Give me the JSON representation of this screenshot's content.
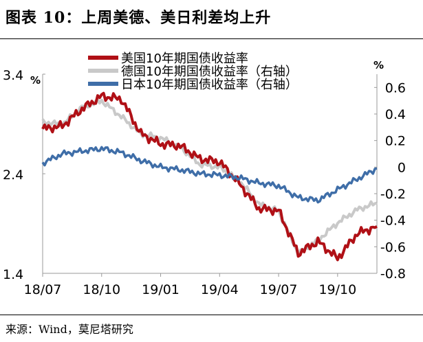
{
  "header": {
    "title": "图表 10：上周美德、美日利差均上升"
  },
  "footer": {
    "source": "来源：Wind，莫尼塔研究"
  },
  "chart_data": {
    "type": "line",
    "title": "",
    "y_left": {
      "unit": "%",
      "range": [
        1.4,
        3.4
      ],
      "ticks": [
        "3.4",
        "2.4",
        "1.4"
      ],
      "tick_values": [
        3.4,
        2.4,
        1.4
      ]
    },
    "y_right": {
      "unit": "%",
      "range": [
        -0.8,
        0.7
      ],
      "ticks": [
        "0.6",
        "0.4",
        "0.2",
        "0",
        "-0.2",
        "-0.4",
        "-0.6",
        "-0.8"
      ],
      "tick_values": [
        0.6,
        0.4,
        0.2,
        0,
        -0.2,
        -0.4,
        -0.6,
        -0.8
      ]
    },
    "x_ticks": [
      "18/07",
      "18/10",
      "19/01",
      "19/04",
      "19/07",
      "19/10"
    ],
    "x_tick_values": [
      "2018-07",
      "2018-10",
      "2019-01",
      "2019-04",
      "2019-07",
      "2019-10"
    ],
    "x_range": [
      "2018-07",
      "2019-12"
    ],
    "legend_position": "top-center",
    "colors": {
      "us": "#b01016",
      "de": "#c9c9c9",
      "jp": "#3f6ea8"
    },
    "series": [
      {
        "name": "美国10年期国债收益率",
        "axis": "left",
        "x": [
          "2018-07",
          "2018-08",
          "2018-09",
          "2018-10",
          "2018-11",
          "2018-12",
          "2019-01",
          "2019-02",
          "2019-03",
          "2019-04",
          "2019-05",
          "2019-06",
          "2019-07",
          "2019-08",
          "2019-09",
          "2019-10",
          "2019-11",
          "2019-12"
        ],
        "values": [
          2.85,
          2.88,
          3.05,
          3.18,
          3.15,
          2.8,
          2.7,
          2.68,
          2.55,
          2.52,
          2.3,
          2.05,
          2.03,
          1.6,
          1.72,
          1.55,
          1.8,
          1.87
        ]
      },
      {
        "name": "德国10年期国债收益率（右轴）",
        "axis": "right",
        "x": [
          "2018-07",
          "2018-08",
          "2018-09",
          "2018-10",
          "2018-11",
          "2018-12",
          "2019-01",
          "2019-02",
          "2019-03",
          "2019-04",
          "2019-05",
          "2019-06",
          "2019-07",
          "2019-08",
          "2019-09",
          "2019-10",
          "2019-11",
          "2019-12"
        ],
        "values": [
          0.34,
          0.32,
          0.45,
          0.5,
          0.38,
          0.25,
          0.22,
          0.15,
          0.02,
          0.0,
          -0.1,
          -0.28,
          -0.33,
          -0.65,
          -0.55,
          -0.42,
          -0.32,
          -0.27
        ]
      },
      {
        "name": "日本10年期国债收益率（右轴）",
        "axis": "right",
        "x": [
          "2018-07",
          "2018-08",
          "2018-09",
          "2018-10",
          "2018-11",
          "2018-12",
          "2019-01",
          "2019-02",
          "2019-03",
          "2019-04",
          "2019-05",
          "2019-06",
          "2019-07",
          "2019-08",
          "2019-09",
          "2019-10",
          "2019-11",
          "2019-12"
        ],
        "values": [
          0.03,
          0.1,
          0.12,
          0.14,
          0.11,
          0.05,
          0.0,
          -0.02,
          -0.05,
          -0.06,
          -0.08,
          -0.12,
          -0.14,
          -0.23,
          -0.25,
          -0.17,
          -0.09,
          -0.01
        ]
      }
    ]
  }
}
